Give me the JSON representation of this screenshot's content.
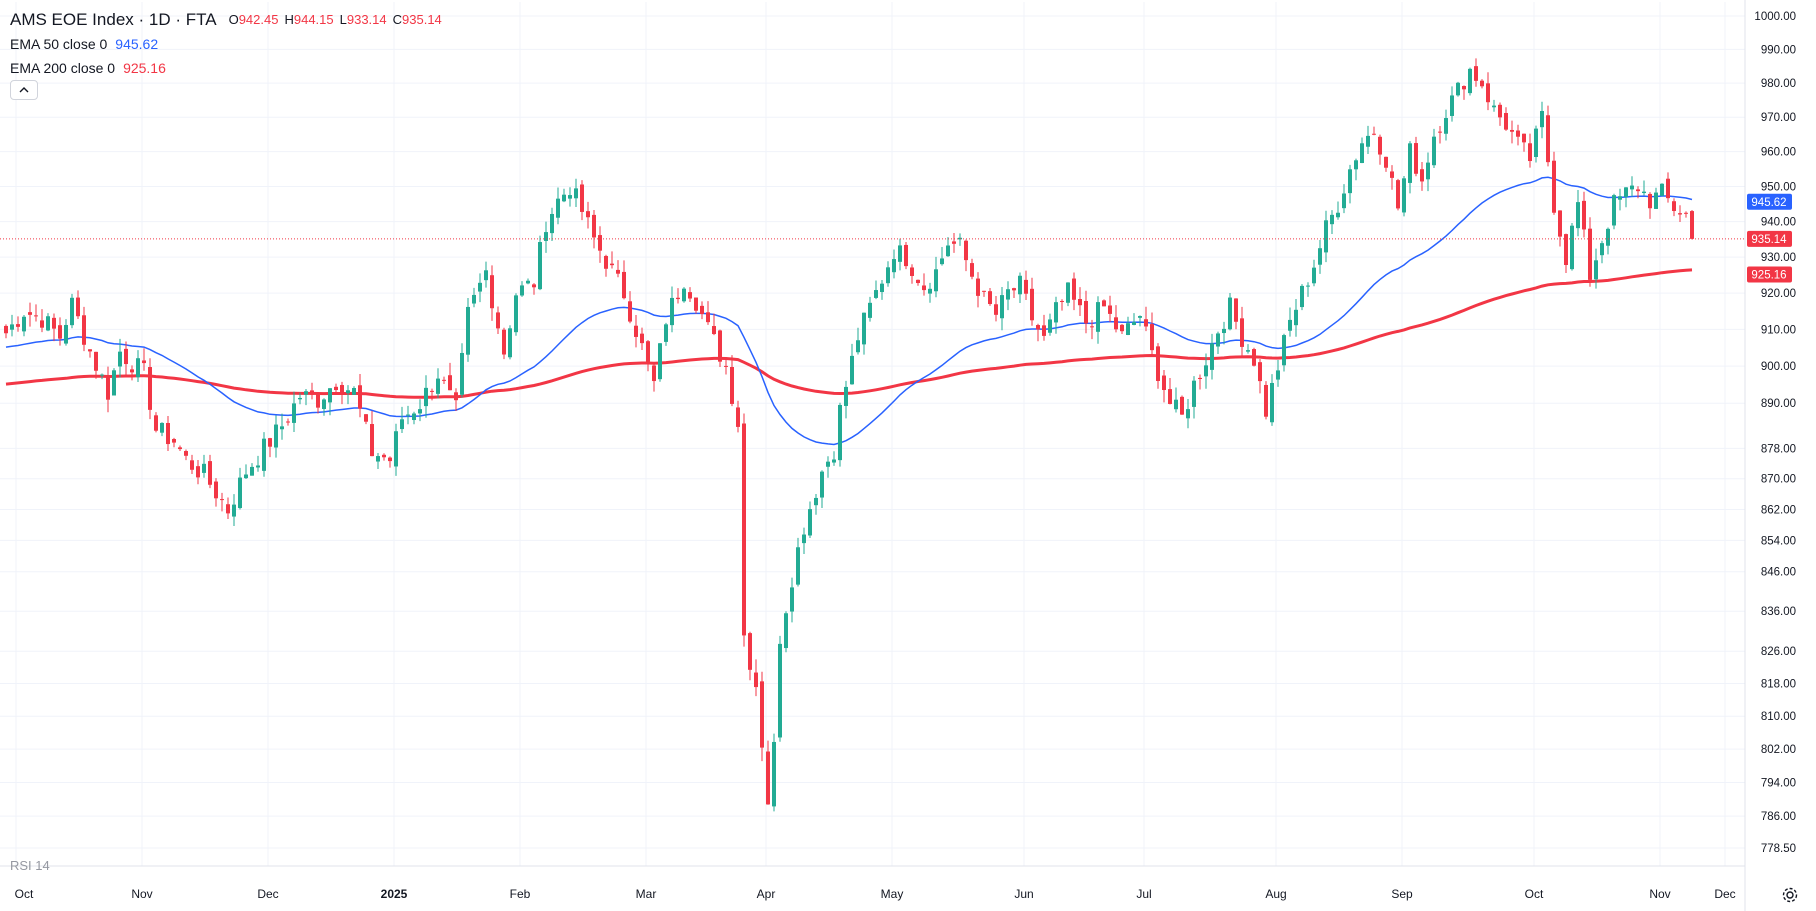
{
  "header": {
    "title": "AMS EOE Index · 1D · FTA",
    "ohlc": [
      {
        "key": "O",
        "value": "942.45"
      },
      {
        "key": "H",
        "value": "944.15"
      },
      {
        "key": "L",
        "value": "933.14"
      },
      {
        "key": "C",
        "value": "935.14"
      }
    ],
    "ema50": {
      "label": "EMA 50 close 0",
      "value": "945.62"
    },
    "ema200": {
      "label": "EMA 200 close 0",
      "value": "925.16"
    },
    "rsi_label": "RSI 14"
  },
  "colors": {
    "up": "#22ab94",
    "down": "#f23645",
    "ema50": "#2962ff",
    "ema200": "#f23645",
    "grid": "#f0f3fa",
    "axis_text": "#131722"
  },
  "icons": {
    "collapse": "chevron-up-icon",
    "settings": "gear-icon"
  },
  "chart_data": {
    "type": "candlestick",
    "title": "AMS EOE Index · 1D · FTA",
    "ylim": [
      778.5,
      1000
    ],
    "y_scale": "log",
    "y_ticks": [
      "1000.00",
      "990.00",
      "980.00",
      "970.00",
      "960.00",
      "950.00",
      "940.00",
      "930.00",
      "920.00",
      "910.00",
      "900.00",
      "890.00",
      "878.00",
      "870.00",
      "862.00",
      "854.00",
      "846.00",
      "836.00",
      "826.00",
      "818.00",
      "810.00",
      "802.00",
      "794.00",
      "786.00",
      "778.50"
    ],
    "x_ticks": [
      "Oct",
      "Nov",
      "Dec",
      "2025",
      "Feb",
      "Mar",
      "Apr",
      "May",
      "Jun",
      "Jul",
      "Aug",
      "Sep",
      "Oct",
      "Nov",
      "Dec"
    ],
    "price_labels": [
      {
        "name": "EMA 50",
        "value": "945.62"
      },
      {
        "name": "Close",
        "value": "935.14"
      },
      {
        "name": "EMA 200",
        "value": "925.16"
      }
    ],
    "last_close": 935.14,
    "anchors": [
      [
        0,
        909
      ],
      [
        3,
        915
      ],
      [
        6,
        913
      ],
      [
        9,
        908
      ],
      [
        11,
        917
      ],
      [
        14,
        904
      ],
      [
        17,
        893
      ],
      [
        19,
        904
      ],
      [
        23,
        898
      ],
      [
        25,
        883
      ],
      [
        28,
        880
      ],
      [
        30,
        875
      ],
      [
        33,
        871
      ],
      [
        37,
        862
      ],
      [
        40,
        872
      ],
      [
        43,
        878
      ],
      [
        46,
        884
      ],
      [
        49,
        892
      ],
      [
        52,
        891
      ],
      [
        55,
        896
      ],
      [
        58,
        893
      ],
      [
        61,
        877
      ],
      [
        64,
        875
      ],
      [
        66,
        886
      ],
      [
        69,
        890
      ],
      [
        72,
        898
      ],
      [
        75,
        888
      ],
      [
        77,
        914
      ],
      [
        80,
        926
      ],
      [
        83,
        904
      ],
      [
        85,
        920
      ],
      [
        88,
        923
      ],
      [
        90,
        940
      ],
      [
        92,
        946
      ],
      [
        94,
        950
      ],
      [
        96,
        943
      ],
      [
        98,
        935
      ],
      [
        100,
        929
      ],
      [
        103,
        920
      ],
      [
        106,
        905
      ],
      [
        108,
        895
      ],
      [
        110,
        913
      ],
      [
        113,
        924
      ],
      [
        115,
        918
      ],
      [
        117,
        910
      ],
      [
        120,
        900
      ],
      [
        122,
        885
      ],
      [
        123,
        830
      ],
      [
        125,
        818
      ],
      [
        127,
        790
      ],
      [
        128,
        802
      ],
      [
        129,
        830
      ],
      [
        131,
        845
      ],
      [
        133,
        858
      ],
      [
        136,
        872
      ],
      [
        138,
        878
      ],
      [
        139,
        888
      ],
      [
        142,
        908
      ],
      [
        145,
        920
      ],
      [
        148,
        932
      ],
      [
        150,
        930
      ],
      [
        153,
        922
      ],
      [
        155,
        926
      ],
      [
        157,
        934
      ],
      [
        159,
        933
      ],
      [
        161,
        925
      ],
      [
        163,
        918
      ],
      [
        165,
        914
      ],
      [
        167,
        920
      ],
      [
        169,
        922
      ],
      [
        171,
        913
      ],
      [
        173,
        907
      ],
      [
        175,
        915
      ],
      [
        177,
        920
      ],
      [
        180,
        912
      ],
      [
        183,
        916
      ],
      [
        186,
        908
      ],
      [
        189,
        914
      ],
      [
        191,
        903
      ],
      [
        194,
        890
      ],
      [
        196,
        886
      ],
      [
        198,
        895
      ],
      [
        200,
        902
      ],
      [
        202,
        910
      ],
      [
        204,
        916
      ],
      [
        206,
        908
      ],
      [
        208,
        902
      ],
      [
        210,
        888
      ],
      [
        212,
        900
      ],
      [
        214,
        912
      ],
      [
        216,
        920
      ],
      [
        218,
        928
      ],
      [
        220,
        938
      ],
      [
        222,
        945
      ],
      [
        224,
        955
      ],
      [
        226,
        963
      ],
      [
        228,
        966
      ],
      [
        230,
        958
      ],
      [
        232,
        944
      ],
      [
        234,
        960
      ],
      [
        236,
        952
      ],
      [
        238,
        965
      ],
      [
        240,
        972
      ],
      [
        242,
        978
      ],
      [
        244,
        984
      ],
      [
        246,
        980
      ],
      [
        248,
        972
      ],
      [
        250,
        968
      ],
      [
        252,
        962
      ],
      [
        254,
        958
      ],
      [
        256,
        970
      ],
      [
        258,
        945
      ],
      [
        260,
        930
      ],
      [
        262,
        945
      ],
      [
        264,
        925
      ],
      [
        266,
        935
      ],
      [
        268,
        945
      ],
      [
        270,
        948
      ],
      [
        272,
        950
      ],
      [
        274,
        946
      ],
      [
        276,
        948
      ],
      [
        278,
        944
      ],
      [
        280,
        942
      ],
      [
        281,
        935
      ]
    ]
  }
}
